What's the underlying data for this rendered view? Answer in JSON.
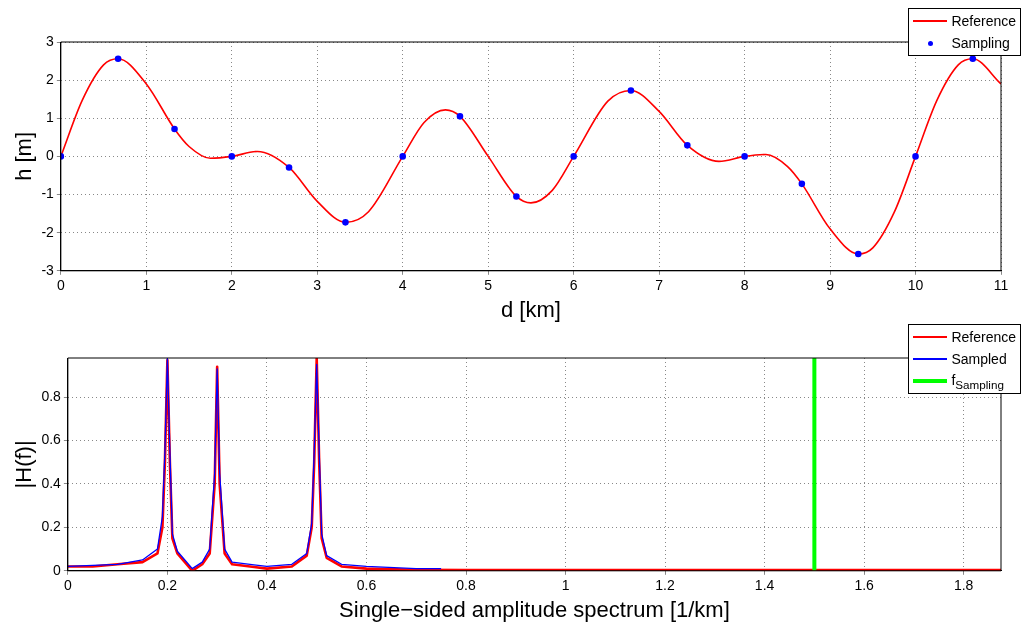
{
  "chart_data": [
    {
      "type": "line",
      "xlabel": "d [km]",
      "ylabel": "h [m]",
      "xlim": [
        0,
        11
      ],
      "ylim": [
        -3,
        3
      ],
      "xticks": [
        0,
        1,
        2,
        3,
        4,
        5,
        6,
        7,
        8,
        9,
        10,
        11
      ],
      "yticks": [
        -3,
        -2,
        -1,
        0,
        1,
        2,
        3
      ],
      "grid": true,
      "legend": "top right",
      "series": [
        {
          "name": "Reference",
          "type": "line",
          "marker": "none",
          "color": "#ff0000",
          "x": [
            0,
            0.25,
            0.5,
            0.67,
            1,
            1.33,
            1.5,
            1.75,
            2,
            2.3,
            2.67,
            3,
            3.33,
            3.6,
            4,
            4.25,
            4.5,
            4.67,
            5,
            5.33,
            5.5,
            5.75,
            6,
            6.4,
            6.67,
            7,
            7.33,
            7.7,
            8,
            8.25,
            8.5,
            8.67,
            9,
            9.33,
            9.5,
            9.75,
            10,
            10.25,
            10.5,
            10.67,
            11
          ],
          "values": [
            0,
            1.47,
            2.4,
            2.56,
            1.9,
            0.72,
            0.26,
            -0.05,
            0,
            0.13,
            -0.29,
            -1.18,
            -1.73,
            -1.45,
            0,
            0.89,
            1.22,
            1.05,
            0,
            -1.05,
            -1.22,
            -0.89,
            0,
            1.45,
            1.73,
            1.18,
            0.29,
            -0.13,
            0,
            0.05,
            -0.26,
            -0.72,
            -1.9,
            -2.56,
            -2.4,
            -1.47,
            0,
            1.47,
            2.4,
            2.56,
            1.9
          ]
        },
        {
          "name": "Sampling",
          "type": "scatter",
          "marker": "circle",
          "color": "#0000ff",
          "x": [
            0,
            0.67,
            1.33,
            2,
            2.67,
            3.33,
            4,
            4.67,
            5.33,
            6,
            6.67,
            7.33,
            8,
            8.67,
            9.33,
            10,
            10.67
          ],
          "values": [
            0,
            2.56,
            0.72,
            0,
            -0.29,
            -1.73,
            0,
            1.05,
            -1.05,
            0,
            1.73,
            0.29,
            0,
            -0.72,
            -2.56,
            0,
            2.56
          ]
        }
      ]
    },
    {
      "type": "line",
      "xlabel": "Single−sided amplitude spectrum [1/km]",
      "ylabel": "|H(f)|",
      "xlim": [
        0,
        1.875
      ],
      "ylim": [
        0,
        0.98
      ],
      "xticks": [
        0,
        0.2,
        0.4,
        0.6,
        0.8,
        1,
        1.2,
        1.4,
        1.6,
        1.8
      ],
      "yticks": [
        0,
        0.2,
        0.4,
        0.6,
        0.8
      ],
      "grid": true,
      "legend": "top right",
      "series": [
        {
          "name": "Reference",
          "type": "line",
          "marker": "none",
          "color": "#ff0000",
          "x": [
            0,
            0.05,
            0.1,
            0.15,
            0.18,
            0.19,
            0.195,
            0.2,
            0.205,
            0.21,
            0.22,
            0.25,
            0.27,
            0.285,
            0.295,
            0.3,
            0.305,
            0.315,
            0.33,
            0.4,
            0.45,
            0.48,
            0.49,
            0.495,
            0.5,
            0.505,
            0.51,
            0.52,
            0.55,
            0.6,
            0.7,
            0.8,
            1,
            1.2,
            1.5,
            1.875
          ],
          "values": [
            0.02,
            0.02,
            0.03,
            0.04,
            0.08,
            0.2,
            0.5,
            0.97,
            0.5,
            0.15,
            0.08,
            0,
            0.03,
            0.08,
            0.4,
            0.94,
            0.4,
            0.08,
            0.03,
            0.01,
            0.02,
            0.07,
            0.2,
            0.5,
            0.98,
            0.5,
            0.15,
            0.06,
            0.02,
            0.01,
            0.005,
            0.003,
            0.003,
            0.003,
            0.003,
            0.003
          ]
        },
        {
          "name": "Sampled",
          "type": "line",
          "marker": "none",
          "color": "#0000ff",
          "x": [
            0,
            0.05,
            0.1,
            0.15,
            0.18,
            0.19,
            0.195,
            0.2,
            0.205,
            0.21,
            0.22,
            0.25,
            0.27,
            0.285,
            0.295,
            0.3,
            0.305,
            0.315,
            0.33,
            0.4,
            0.45,
            0.48,
            0.49,
            0.495,
            0.5,
            0.505,
            0.51,
            0.52,
            0.55,
            0.6,
            0.7,
            0.75
          ],
          "values": [
            0.02,
            0.025,
            0.03,
            0.05,
            0.1,
            0.25,
            0.55,
            0.98,
            0.55,
            0.17,
            0.09,
            0.01,
            0.04,
            0.1,
            0.45,
            0.93,
            0.45,
            0.1,
            0.04,
            0.02,
            0.03,
            0.08,
            0.22,
            0.55,
            0.95,
            0.55,
            0.17,
            0.07,
            0.03,
            0.02,
            0.01,
            0.01
          ]
        },
        {
          "name": "f$_{Sampling}$",
          "type": "line",
          "marker": "none",
          "color": "#00ff00",
          "x": [
            1.5,
            1.5
          ],
          "values": [
            0,
            0.98
          ]
        }
      ]
    }
  ]
}
